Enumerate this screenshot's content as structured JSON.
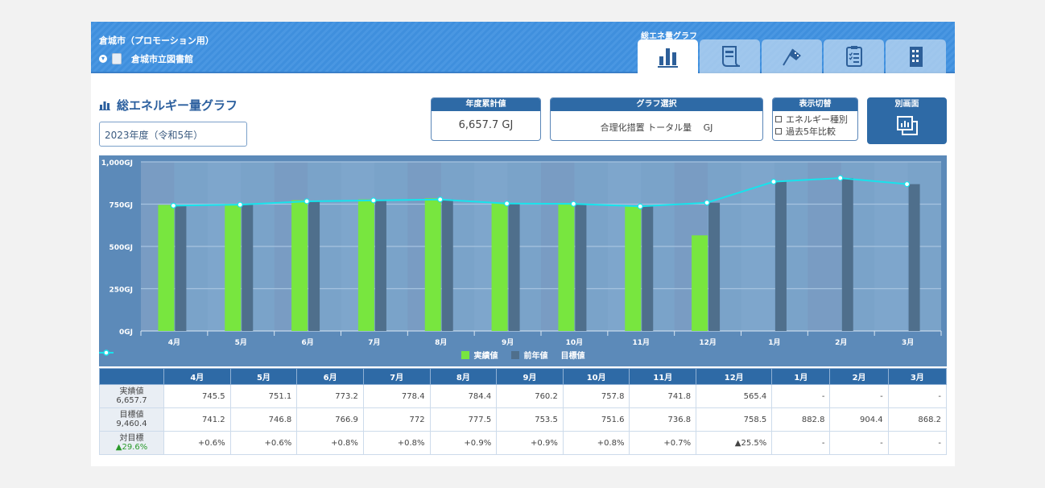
{
  "header": {
    "org_title": "倉城市（プロモーション用）",
    "facility": "倉城市立図書館",
    "active_tab_caption": "総エネ量グラフ",
    "tabs": [
      {
        "name": "energy-graph",
        "icon": "bar-chart-icon",
        "active": true
      },
      {
        "name": "report",
        "icon": "receipt-icon",
        "active": false
      },
      {
        "name": "goal",
        "icon": "checkered-flag-icon",
        "active": false
      },
      {
        "name": "checklist",
        "icon": "clipboard-checklist-icon",
        "active": false
      },
      {
        "name": "building",
        "icon": "building-icon",
        "active": false
      }
    ]
  },
  "page": {
    "title": "総エネルギー量グラフ",
    "year_select": "2023年度（令和5年）"
  },
  "panels": {
    "total": {
      "label": "年度累計値",
      "value": "6,657.7 GJ"
    },
    "graph_select": {
      "label": "グラフ選択",
      "value": "合理化措置 トータル量　 GJ"
    },
    "toggle": {
      "label": "表示切替",
      "options": [
        "エネルギー種別",
        "過去5年比較"
      ]
    },
    "new_window": {
      "label": "別画面"
    }
  },
  "colors": {
    "actual": "#78e63f",
    "previous": "#4f6f8c",
    "target": "#17e3ec",
    "header_blue": "#2e6aa6"
  },
  "chart_data": {
    "type": "bar",
    "categories": [
      "4月",
      "5月",
      "6月",
      "7月",
      "8月",
      "9月",
      "10月",
      "11月",
      "12月",
      "1月",
      "2月",
      "3月"
    ],
    "ylim": [
      0,
      1000
    ],
    "yticks": [
      0,
      250,
      500,
      750,
      1000
    ],
    "ytick_labels": [
      "0GJ",
      "250GJ",
      "500GJ",
      "750GJ",
      "1,000GJ"
    ],
    "series": [
      {
        "name": "実績値",
        "type": "bar",
        "values": [
          745.5,
          751.1,
          773.2,
          778.4,
          784.4,
          760.2,
          757.8,
          741.8,
          565.4,
          null,
          null,
          null
        ]
      },
      {
        "name": "前年値",
        "type": "bar",
        "values": [
          741.2,
          746.8,
          766.9,
          772,
          777.5,
          753.5,
          751.6,
          736.8,
          758.5,
          882.8,
          904.4,
          868.2
        ]
      },
      {
        "name": "目標値",
        "type": "line",
        "values": [
          741.2,
          746.8,
          766.9,
          772,
          777.5,
          753.5,
          751.6,
          736.8,
          758.5,
          882.8,
          904.4,
          868.2
        ]
      }
    ],
    "legend": [
      "実績値",
      "前年値",
      "目標値"
    ],
    "legend_position": "bottom"
  },
  "table": {
    "columns": [
      "4月",
      "5月",
      "6月",
      "7月",
      "8月",
      "9月",
      "10月",
      "11月",
      "12月",
      "1月",
      "2月",
      "3月"
    ],
    "rows": [
      {
        "label": "実績値",
        "total": "6,657.7",
        "cells": [
          "745.5",
          "751.1",
          "773.2",
          "778.4",
          "784.4",
          "760.2",
          "757.8",
          "741.8",
          "565.4",
          "-",
          "-",
          "-"
        ]
      },
      {
        "label": "目標値",
        "total": "9,460.4",
        "cells": [
          "741.2",
          "746.8",
          "766.9",
          "772",
          "777.5",
          "753.5",
          "751.6",
          "736.8",
          "758.5",
          "882.8",
          "904.4",
          "868.2"
        ]
      },
      {
        "label": "対目標",
        "total": "▲29.6%",
        "cells": [
          "+0.6%",
          "+0.6%",
          "+0.8%",
          "+0.8%",
          "+0.9%",
          "+0.9%",
          "+0.8%",
          "+0.7%",
          "▲25.5%",
          "-",
          "-",
          "-"
        ]
      }
    ]
  }
}
